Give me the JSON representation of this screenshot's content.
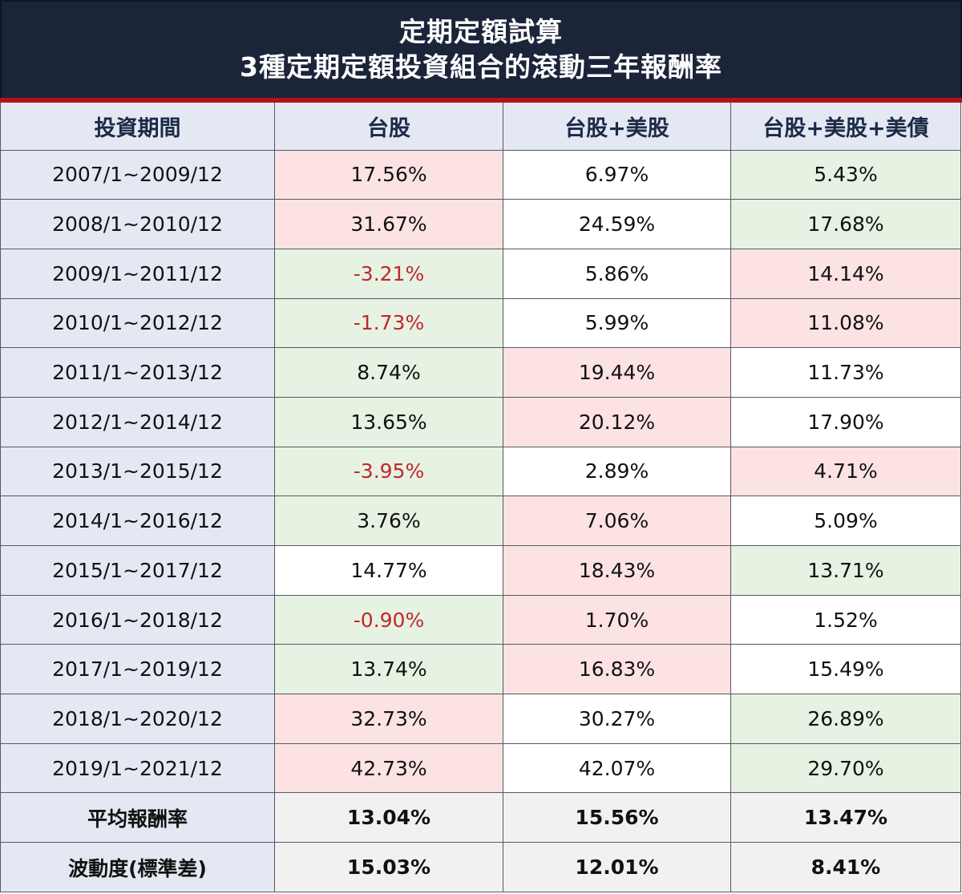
{
  "title": {
    "line1": "定期定額試算",
    "line2": "3種定期定額投資組合的滾動三年報酬率"
  },
  "colors": {
    "title_bg": "#1b2439",
    "accent_stripe": "#b3121c",
    "header_bg": "#e3e8f3",
    "header_text": "#1c2a47",
    "highlight_red": "#fde2e3",
    "highlight_green": "#e6f2e2",
    "negative_text": "#c0282d",
    "summary_bg": "#f1f1f1"
  },
  "table": {
    "headers": [
      "投資期間",
      "台股",
      "台股+美股",
      "台股+美股+美債"
    ],
    "rows": [
      {
        "period": "2007/1~2009/12",
        "tw": "17.56%",
        "tw_us": "6.97%",
        "tw_us_bond": "5.43%",
        "bg": [
          "red",
          "white",
          "green"
        ]
      },
      {
        "period": "2008/1~2010/12",
        "tw": "31.67%",
        "tw_us": "24.59%",
        "tw_us_bond": "17.68%",
        "bg": [
          "red",
          "white",
          "green"
        ]
      },
      {
        "period": "2009/1~2011/12",
        "tw": "-3.21%",
        "tw_us": "5.86%",
        "tw_us_bond": "14.14%",
        "bg": [
          "green",
          "white",
          "red"
        ]
      },
      {
        "period": "2010/1~2012/12",
        "tw": "-1.73%",
        "tw_us": "5.99%",
        "tw_us_bond": "11.08%",
        "bg": [
          "green",
          "white",
          "red"
        ]
      },
      {
        "period": "2011/1~2013/12",
        "tw": "8.74%",
        "tw_us": "19.44%",
        "tw_us_bond": "11.73%",
        "bg": [
          "green",
          "red",
          "white"
        ]
      },
      {
        "period": "2012/1~2014/12",
        "tw": "13.65%",
        "tw_us": "20.12%",
        "tw_us_bond": "17.90%",
        "bg": [
          "green",
          "red",
          "white"
        ]
      },
      {
        "period": "2013/1~2015/12",
        "tw": "-3.95%",
        "tw_us": "2.89%",
        "tw_us_bond": "4.71%",
        "bg": [
          "green",
          "white",
          "red"
        ]
      },
      {
        "period": "2014/1~2016/12",
        "tw": "3.76%",
        "tw_us": "7.06%",
        "tw_us_bond": "5.09%",
        "bg": [
          "green",
          "red",
          "white"
        ]
      },
      {
        "period": "2015/1~2017/12",
        "tw": "14.77%",
        "tw_us": "18.43%",
        "tw_us_bond": "13.71%",
        "bg": [
          "white",
          "red",
          "green"
        ]
      },
      {
        "period": "2016/1~2018/12",
        "tw": "-0.90%",
        "tw_us": "1.70%",
        "tw_us_bond": "1.52%",
        "bg": [
          "green",
          "red",
          "white"
        ]
      },
      {
        "period": "2017/1~2019/12",
        "tw": "13.74%",
        "tw_us": "16.83%",
        "tw_us_bond": "15.49%",
        "bg": [
          "green",
          "red",
          "white"
        ]
      },
      {
        "period": "2018/1~2020/12",
        "tw": "32.73%",
        "tw_us": "30.27%",
        "tw_us_bond": "26.89%",
        "bg": [
          "red",
          "white",
          "green"
        ]
      },
      {
        "period": "2019/1~2021/12",
        "tw": "42.73%",
        "tw_us": "42.07%",
        "tw_us_bond": "29.70%",
        "bg": [
          "red",
          "white",
          "green"
        ]
      }
    ],
    "summary": [
      {
        "label": "平均報酬率",
        "tw": "13.04%",
        "tw_us": "15.56%",
        "tw_us_bond": "13.47%"
      },
      {
        "label": "波動度(標準差)",
        "tw": "15.03%",
        "tw_us": "12.01%",
        "tw_us_bond": "8.41%"
      }
    ]
  }
}
